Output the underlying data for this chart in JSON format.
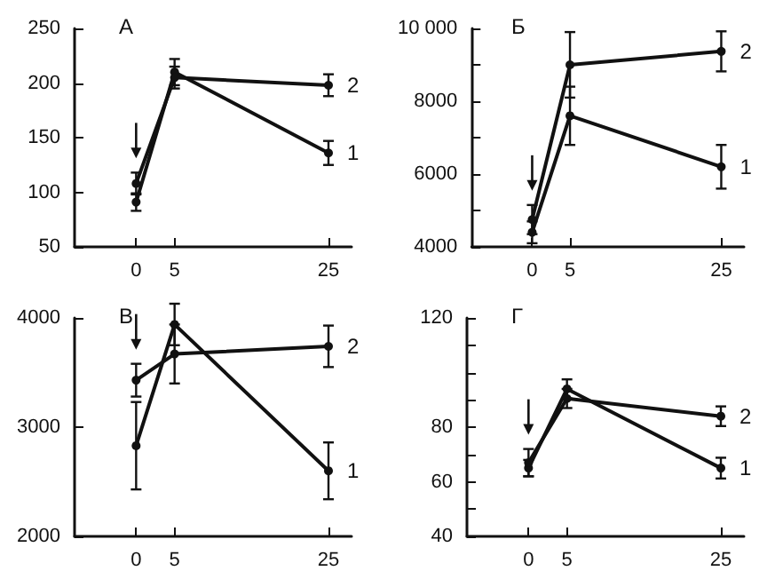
{
  "chart_data": [
    {
      "type": "line",
      "title": "А",
      "xlim": [
        -8,
        28
      ],
      "xticks": [
        0,
        5,
        25
      ],
      "ylim": [
        50,
        250
      ],
      "yticks": [
        50,
        100,
        150,
        200,
        250
      ],
      "grid": false,
      "legend": false,
      "marker": "circle",
      "line_style": "solid",
      "x": [
        0,
        5,
        25
      ],
      "series": [
        {
          "name": "1",
          "color": "#111111",
          "values": [
            91,
            210,
            136
          ],
          "errors": [
            8,
            12,
            11
          ]
        },
        {
          "name": "2",
          "color": "#111111",
          "values": [
            108,
            205,
            198
          ],
          "errors": [
            10,
            10,
            10
          ]
        }
      ]
    },
    {
      "type": "line",
      "title": "Б",
      "xlim": [
        -8,
        28
      ],
      "xticks": [
        0,
        5,
        25
      ],
      "ylim": [
        4000,
        10000
      ],
      "yticks": [
        4000,
        {
          "value": 5000,
          "label": null
        },
        6000,
        {
          "value": 7000,
          "label": null
        },
        8000,
        {
          "value": 9000,
          "label": null
        },
        {
          "value": 10000,
          "label": "10 000"
        }
      ],
      "grid": false,
      "legend": false,
      "marker": "circle",
      "line_style": "solid",
      "x": [
        0,
        5,
        25
      ],
      "series": [
        {
          "name": "1",
          "color": "#111111",
          "values": [
            4400,
            7600,
            6200
          ],
          "errors": [
            300,
            800,
            600
          ]
        },
        {
          "name": "2",
          "color": "#111111",
          "values": [
            4750,
            9000,
            9370
          ],
          "errors": [
            400,
            900,
            550
          ]
        }
      ]
    },
    {
      "type": "line",
      "title": "В",
      "xlim": [
        -8,
        28
      ],
      "xticks": [
        0,
        5,
        25
      ],
      "ylim": [
        2000,
        4000
      ],
      "yticks": [
        2000,
        3000,
        4000
      ],
      "grid": false,
      "legend": false,
      "marker": "circle",
      "line_style": "solid",
      "x": [
        0,
        5,
        25
      ],
      "series": [
        {
          "name": "1",
          "color": "#111111",
          "values": [
            2830,
            3940,
            2600
          ],
          "errors": [
            400,
            190,
            260
          ]
        },
        {
          "name": "2",
          "color": "#111111",
          "values": [
            3430,
            3670,
            3740
          ],
          "errors": [
            150,
            270,
            190
          ]
        }
      ]
    },
    {
      "type": "line",
      "title": "Г",
      "xlim": [
        -8,
        28
      ],
      "xticks": [
        0,
        5,
        25
      ],
      "ylim": [
        40,
        120
      ],
      "yticks": [
        40,
        {
          "value": 50,
          "label": null
        },
        60,
        {
          "value": 70,
          "label": null
        },
        80,
        {
          "value": 90,
          "label": null
        },
        {
          "value": 100,
          "label": null
        },
        {
          "value": 110,
          "label": null
        },
        120
      ],
      "grid": false,
      "legend": false,
      "marker": "circle",
      "line_style": "solid",
      "x": [
        0,
        5,
        25
      ],
      "series": [
        {
          "name": "1",
          "color": "#111111",
          "values": [
            65,
            94,
            65
          ],
          "errors": [
            3,
            3.5,
            3.8
          ]
        },
        {
          "name": "2",
          "color": "#111111",
          "values": [
            67,
            90.5,
            84
          ],
          "errors": [
            5,
            3.5,
            3.6
          ]
        }
      ]
    }
  ]
}
